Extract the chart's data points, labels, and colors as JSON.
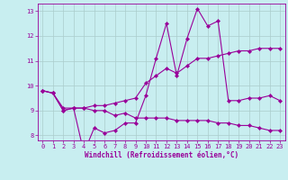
{
  "title": "",
  "xlabel": "Windchill (Refroidissement éolien,°C)",
  "ylabel": "",
  "background_color": "#c8eef0",
  "line_color": "#990099",
  "grid_color": "#aacccc",
  "x": [
    0,
    1,
    2,
    3,
    4,
    5,
    6,
    7,
    8,
    9,
    10,
    11,
    12,
    13,
    14,
    15,
    16,
    17,
    18,
    19,
    20,
    21,
    22,
    23
  ],
  "line1": [
    9.8,
    9.7,
    9.0,
    9.1,
    7.3,
    8.3,
    8.1,
    8.2,
    8.5,
    8.5,
    9.6,
    11.1,
    12.5,
    10.4,
    11.9,
    13.1,
    12.4,
    12.6,
    9.4,
    9.4,
    9.5,
    9.5,
    9.6,
    9.4
  ],
  "line2": [
    9.8,
    9.7,
    9.1,
    9.1,
    9.1,
    9.2,
    9.2,
    9.3,
    9.4,
    9.5,
    10.1,
    10.4,
    10.7,
    10.5,
    10.8,
    11.1,
    11.1,
    11.2,
    11.3,
    11.4,
    11.4,
    11.5,
    11.5,
    11.5
  ],
  "line3": [
    9.8,
    9.7,
    9.0,
    9.1,
    9.1,
    9.0,
    9.0,
    8.8,
    8.9,
    8.7,
    8.7,
    8.7,
    8.7,
    8.6,
    8.6,
    8.6,
    8.6,
    8.5,
    8.5,
    8.4,
    8.4,
    8.3,
    8.2,
    8.2
  ],
  "xlim": [
    -0.5,
    23.5
  ],
  "ylim": [
    7.8,
    13.3
  ],
  "yticks": [
    8,
    9,
    10,
    11,
    12,
    13
  ],
  "xticks": [
    0,
    1,
    2,
    3,
    4,
    5,
    6,
    7,
    8,
    9,
    10,
    11,
    12,
    13,
    14,
    15,
    16,
    17,
    18,
    19,
    20,
    21,
    22,
    23
  ],
  "fontsize_label": 5.5,
  "fontsize_tick": 5.0,
  "linewidth": 0.8,
  "markersize": 2.2
}
